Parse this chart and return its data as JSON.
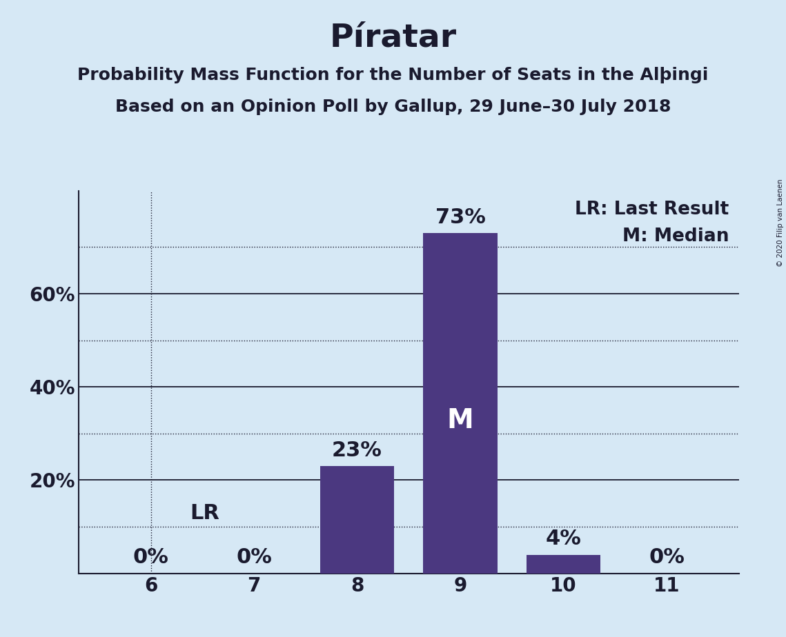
{
  "title": "Píratar",
  "subtitle1": "Probability Mass Function for the Number of Seats in the Alþingi",
  "subtitle2": "Based on an Opinion Poll by Gallup, 29 June–30 July 2018",
  "copyright": "© 2020 Filip van Laenen",
  "categories": [
    6,
    7,
    8,
    9,
    10,
    11
  ],
  "values": [
    0,
    0,
    23,
    73,
    4,
    0
  ],
  "bar_color": "#4b3880",
  "background_color": "#d6e8f5",
  "title_fontsize": 34,
  "subtitle_fontsize": 18,
  "label_fontsize": 19,
  "tick_fontsize": 20,
  "bar_label_fontsize": 22,
  "median_seat": 9,
  "last_result_seat": 6,
  "lr_line_y": 10,
  "solid_yticks": [
    20,
    40,
    60
  ],
  "dotted_yticks": [
    10,
    30,
    50,
    70
  ],
  "ylim": [
    0,
    82
  ],
  "xlim": [
    5.3,
    11.7
  ],
  "legend_lr": "LR: Last Result",
  "legend_m": "M: Median"
}
